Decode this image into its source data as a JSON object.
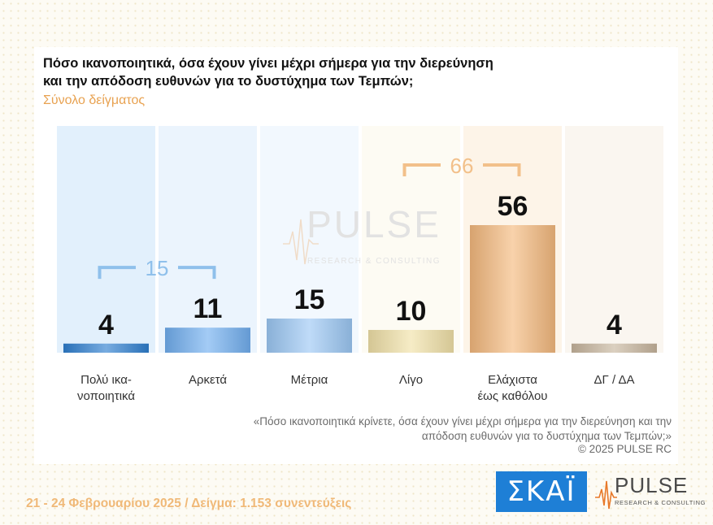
{
  "title_line1": "Πόσο ικανοποιητικά, όσα έχουν γίνει μέχρι σήμερα για την διερεύνηση",
  "title_line2": "και την απόδοση ευθυνών για το δυστύχημα των Τεμπών;",
  "subtitle": "Σύνολο δείγματος",
  "watermark": {
    "brand": "PULSE",
    "tagline": "RESEARCH & CONSULTING"
  },
  "chart_data": {
    "type": "bar",
    "categories": [
      [
        "Πολύ ικα-",
        "νοποιητικά"
      ],
      [
        "Αρκετά"
      ],
      [
        "Μέτρια"
      ],
      [
        "Λίγο"
      ],
      [
        "Ελάχιστα",
        "έως καθόλου"
      ],
      [
        "ΔΓ / ΔΑ"
      ]
    ],
    "values": [
      4,
      11,
      15,
      10,
      56,
      4
    ],
    "value_labels": [
      "4",
      "11",
      "15",
      "10",
      "56",
      "4"
    ],
    "bar_colors": [
      "#2f7fd0",
      "#72aff0",
      "#9cc8f4",
      "#f1e1a8",
      "#f4b97e",
      "#c8b69e"
    ],
    "bracket_groups": [
      {
        "from": 0,
        "to": 1,
        "label": "15",
        "color": "#8fc0eb"
      },
      {
        "from": 3,
        "to": 4,
        "label": "66",
        "color": "#f2c08a"
      }
    ],
    "ylim": [
      0,
      60
    ],
    "grid": false,
    "legend": "none"
  },
  "note": {
    "line1": "«Πόσο ικανοποιητικά κρίνετε, όσα έχουν γίνει μέχρι σήμερα για την διερεύνηση και την",
    "line2": "απόδοση ευθυνών για το δυστύχημα των Τεμπών;»"
  },
  "copyright": "©  2025  PULSE RC",
  "footer": "21 - 24 Φεβρουαρίου 2025  /  Δείγμα:  1.153 συνεντεύξεις",
  "logos": {
    "skai": "ΣΚΑΪ",
    "pulse": "PULSE",
    "pulse_tagline": "RESEARCH & CONSULTING"
  }
}
